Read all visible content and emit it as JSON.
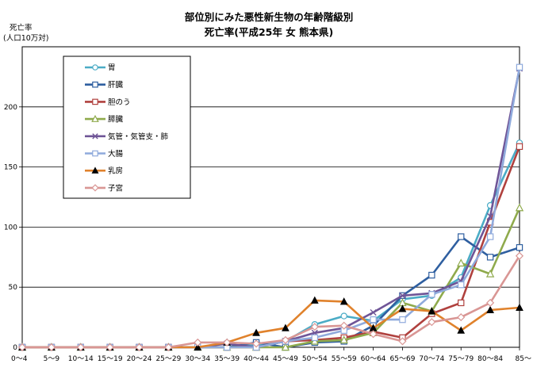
{
  "chart_data": {
    "type": "line",
    "title": [
      "部位別にみた悪性新生物の年齢階級別",
      "死亡率(平成25年 女 熊本県)"
    ],
    "ylabel": [
      "死亡率",
      "(人口10万対)"
    ],
    "xlabel": "",
    "ylim": [
      0,
      250
    ],
    "yticks": [
      0,
      50,
      100,
      150,
      200
    ],
    "grid": "horizontal",
    "legend_position": "top-left",
    "categories": [
      "0〜4",
      "5〜9",
      "10〜14",
      "15〜19",
      "20〜24",
      "25〜29",
      "30〜34",
      "35〜39",
      "40〜44",
      "45〜49",
      "50〜54",
      "55〜59",
      "60〜64",
      "65〜69",
      "70〜74",
      "75〜79",
      "80〜84",
      "85〜"
    ],
    "series": [
      {
        "name": "胃",
        "color": "#4bacc6",
        "marker": "circle",
        "values": [
          0,
          0,
          0,
          0,
          0,
          0,
          0,
          0,
          2,
          5,
          19,
          26,
          22,
          40,
          43,
          58,
          118,
          170
        ]
      },
      {
        "name": "肝臓",
        "color": "#2f5fa0",
        "marker": "square",
        "values": [
          0,
          0,
          0,
          0,
          0,
          0,
          0,
          0,
          4,
          0,
          4,
          5,
          18,
          43,
          60,
          92,
          75,
          83
        ]
      },
      {
        "name": "胆のう",
        "color": "#b0413e",
        "marker": "square",
        "values": [
          0,
          0,
          0,
          0,
          0,
          0,
          0,
          0,
          0,
          5,
          6,
          8,
          13,
          8,
          28,
          37,
          104,
          167
        ]
      },
      {
        "name": "膵臓",
        "color": "#8faa4c",
        "marker": "triangle",
        "values": [
          0,
          0,
          0,
          0,
          0,
          0,
          0,
          0,
          0,
          0,
          5,
          6,
          12,
          37,
          30,
          70,
          61,
          116
        ]
      },
      {
        "name": "気管・気管支・肺",
        "color": "#6f5597",
        "marker": "x",
        "values": [
          0,
          0,
          0,
          0,
          0,
          0,
          0,
          3,
          0,
          5,
          12,
          16,
          29,
          43,
          45,
          55,
          109,
          232
        ]
      },
      {
        "name": "大腸",
        "color": "#8faadc",
        "marker": "square",
        "values": [
          0,
          0,
          0,
          0,
          0,
          0,
          0,
          0,
          0,
          5,
          8,
          14,
          23,
          23,
          44,
          52,
          92,
          233
        ]
      },
      {
        "name": "乳房",
        "color": "#e0822c",
        "marker": "filled-triangle",
        "values": [
          0,
          0,
          0,
          0,
          0,
          0,
          0,
          4,
          12,
          16,
          39,
          38,
          16,
          32,
          30,
          14,
          31,
          33
        ]
      },
      {
        "name": "子宮",
        "color": "#d99694",
        "marker": "diamond",
        "values": [
          0,
          0,
          0,
          0,
          0,
          0,
          4,
          4,
          3,
          6,
          17,
          18,
          11,
          5,
          21,
          25,
          37,
          76
        ]
      }
    ]
  }
}
